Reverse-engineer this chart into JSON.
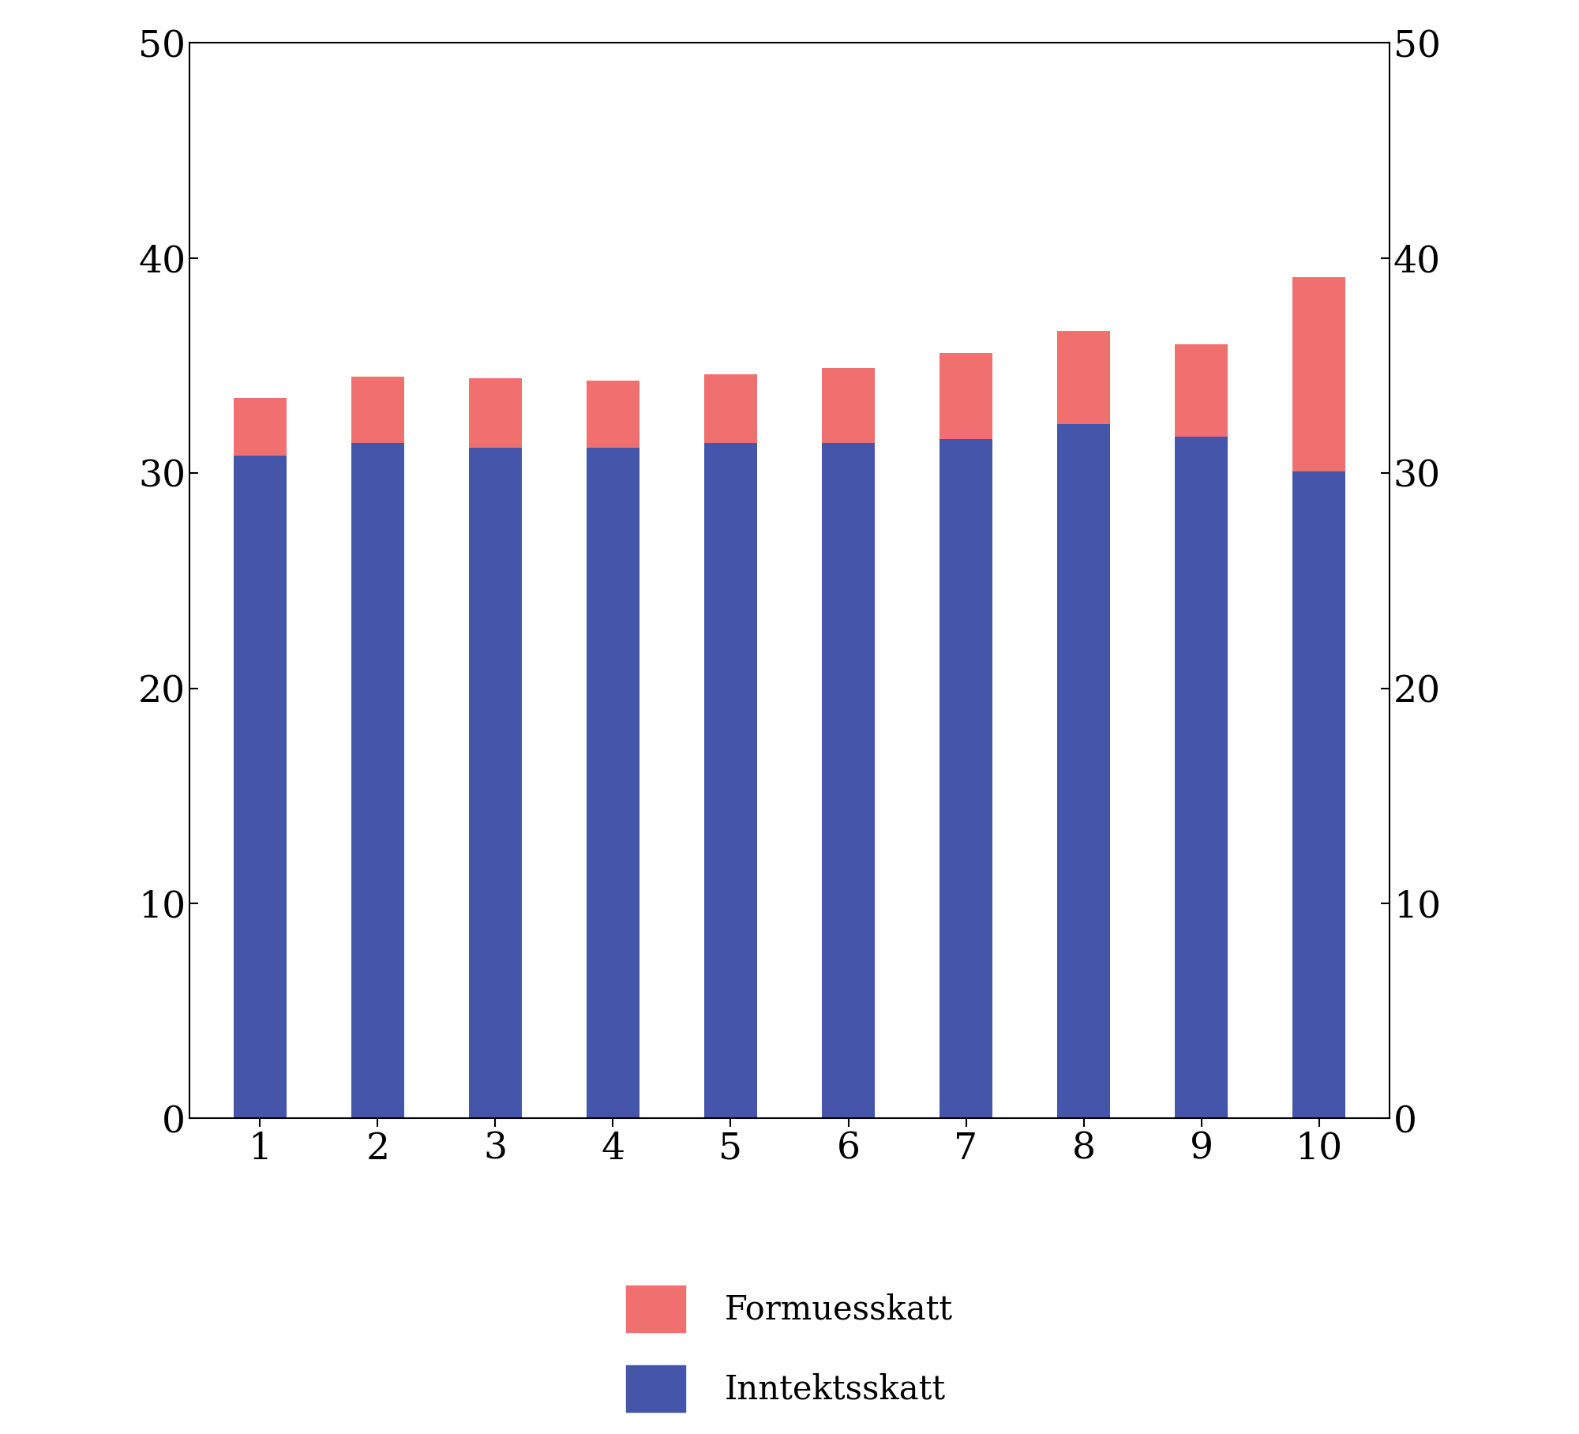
{
  "categories": [
    1,
    2,
    3,
    4,
    5,
    6,
    7,
    8,
    9,
    10
  ],
  "inntektsskatt": [
    30.8,
    31.4,
    31.2,
    31.2,
    31.4,
    31.4,
    31.6,
    32.3,
    31.7,
    30.1
  ],
  "formuesskatt": [
    2.7,
    3.1,
    3.2,
    3.1,
    3.2,
    3.5,
    4.0,
    4.3,
    4.3,
    9.0
  ],
  "inntektsskatt_color": "#4455aa",
  "formuesskatt_color": "#f07070",
  "ylim": [
    0,
    50
  ],
  "yticks": [
    0,
    10,
    20,
    30,
    40,
    50
  ],
  "background_color": "#ffffff",
  "legend_formuesskatt": "Formuesskatt",
  "legend_inntektsskatt": "Inntektsskatt",
  "bar_width": 0.45,
  "legend_fontsize": 30,
  "tick_fontsize": 34
}
